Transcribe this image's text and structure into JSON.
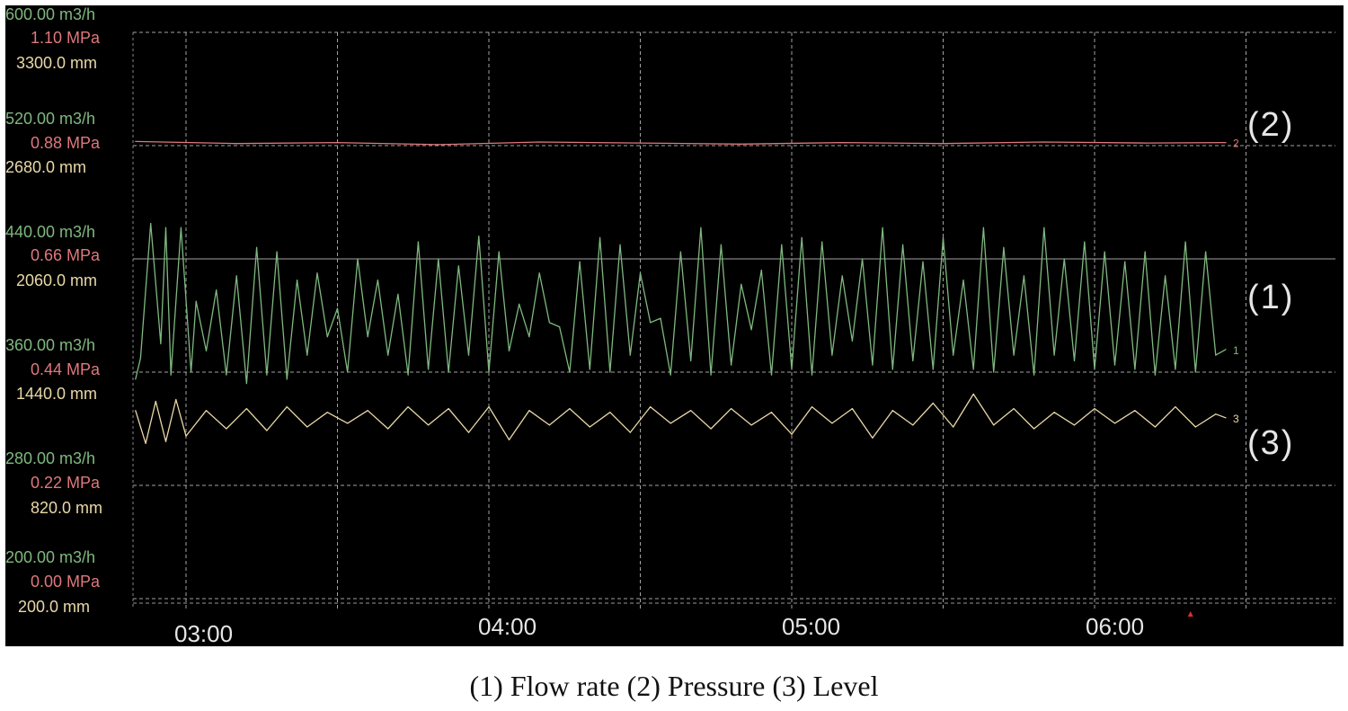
{
  "caption": "(1) Flow rate (2) Pressure (3) Level",
  "colors": {
    "background": "#000000",
    "flow": "#7fb87f",
    "pressure": "#e0787c",
    "level": "#e9d8a6",
    "grid": "#bfbfbf",
    "marker": "#d83030"
  },
  "y_axis_groups": [
    {
      "flow": "600.00 m3/h",
      "pressure": "1.10 MPa",
      "level": "3300.0 mm"
    },
    {
      "flow": "520.00 m3/h",
      "pressure": "0.88 MPa",
      "level": "2680.0 mm"
    },
    {
      "flow": "440.00 m3/h",
      "pressure": "0.66 MPa",
      "level": "2060.0 mm"
    },
    {
      "flow": "360.00 m3/h",
      "pressure": "0.44 MPa",
      "level": "1440.0 mm"
    },
    {
      "flow": "280.00 m3/h",
      "pressure": "0.22 MPa",
      "level": "820.0 mm"
    },
    {
      "flow": "200.00 m3/h",
      "pressure": "0.00 MPa",
      "level": "200.0 mm"
    }
  ],
  "x_ticks": [
    "03:00",
    "04:00",
    "05:00",
    "06:00"
  ],
  "curve_labels": {
    "pressure": "(2)",
    "flow": "(1)",
    "level": "(3)"
  },
  "chart_data": {
    "type": "line",
    "title": "",
    "xlabel": "",
    "x_unit": "hh:mm",
    "xlim": [
      "02:49",
      "06:55"
    ],
    "grid": true,
    "y_axes": [
      {
        "name": "flow",
        "unit": "m3/h",
        "ylim": [
          200,
          600
        ]
      },
      {
        "name": "pressure",
        "unit": "MPa",
        "ylim": [
          0.0,
          1.1
        ]
      },
      {
        "name": "level",
        "unit": "mm",
        "ylim": [
          200,
          3300
        ]
      }
    ],
    "tick_labels_x": [
      "03:00",
      "04:00",
      "05:00",
      "06:00"
    ],
    "series": [
      {
        "key": "flow",
        "axis": "flow",
        "marker_label": "1",
        "x": [
          "02:50",
          "02:51",
          "02:53",
          "02:55",
          "02:56",
          "02:57",
          "02:59",
          "03:01",
          "03:02",
          "03:04",
          "03:06",
          "03:08",
          "03:10",
          "03:12",
          "03:14",
          "03:16",
          "03:18",
          "03:20",
          "03:22",
          "03:24",
          "03:26",
          "03:28",
          "03:30",
          "03:32",
          "03:34",
          "03:36",
          "03:38",
          "03:40",
          "03:42",
          "03:44",
          "03:46",
          "03:48",
          "03:50",
          "03:52",
          "03:54",
          "03:56",
          "03:58",
          "04:00",
          "04:02",
          "04:04",
          "04:06",
          "04:08",
          "04:10",
          "04:12",
          "04:14",
          "04:16",
          "04:18",
          "04:20",
          "04:22",
          "04:24",
          "04:26",
          "04:28",
          "04:30",
          "04:32",
          "04:34",
          "04:36",
          "04:38",
          "04:40",
          "04:42",
          "04:44",
          "04:46",
          "04:48",
          "04:50",
          "04:52",
          "04:54",
          "04:56",
          "04:58",
          "05:00",
          "05:02",
          "05:04",
          "05:06",
          "05:08",
          "05:10",
          "05:12",
          "05:14",
          "05:16",
          "05:18",
          "05:20",
          "05:22",
          "05:24",
          "05:26",
          "05:28",
          "05:30",
          "05:32",
          "05:34",
          "05:36",
          "05:38",
          "05:40",
          "05:42",
          "05:44",
          "05:46",
          "05:48",
          "05:50",
          "05:52",
          "05:54",
          "05:56",
          "05:58",
          "06:00",
          "06:02",
          "06:04",
          "06:06",
          "06:08",
          "06:10",
          "06:12",
          "06:14",
          "06:16",
          "06:18",
          "06:20",
          "06:22",
          "06:24",
          "06:26"
        ],
        "values": [
          355,
          370,
          465,
          380,
          462,
          358,
          462,
          360,
          410,
          375,
          418,
          358,
          428,
          352,
          448,
          358,
          445,
          355,
          425,
          372,
          430,
          385,
          405,
          360,
          440,
          385,
          425,
          372,
          415,
          358,
          452,
          362,
          440,
          360,
          435,
          372,
          456,
          360,
          445,
          375,
          408,
          385,
          430,
          395,
          392,
          360,
          438,
          362,
          455,
          360,
          450,
          372,
          430,
          395,
          398,
          358,
          445,
          368,
          462,
          358,
          450,
          365,
          422,
          390,
          432,
          358,
          450,
          362,
          455,
          358,
          452,
          372,
          428,
          382,
          440,
          365,
          462,
          362,
          450,
          368,
          438,
          362,
          455,
          372,
          425,
          362,
          462,
          360,
          448,
          372,
          428,
          358,
          462,
          372,
          440,
          368,
          452,
          362,
          445,
          365,
          438,
          362,
          445,
          358,
          428,
          362,
          452,
          360,
          445,
          372,
          376
        ]
      },
      {
        "key": "pressure",
        "axis": "pressure",
        "marker_label": "2",
        "x": [
          "02:50",
          "03:10",
          "03:30",
          "03:50",
          "04:10",
          "04:30",
          "04:50",
          "05:10",
          "05:30",
          "05:50",
          "06:10",
          "06:26"
        ],
        "values": [
          0.888,
          0.884,
          0.886,
          0.882,
          0.887,
          0.885,
          0.883,
          0.886,
          0.884,
          0.887,
          0.885,
          0.886
        ]
      },
      {
        "key": "level",
        "axis": "level",
        "marker_label": "3",
        "x": [
          "02:50",
          "02:52",
          "02:54",
          "02:56",
          "02:58",
          "03:00",
          "03:04",
          "03:08",
          "03:12",
          "03:16",
          "03:20",
          "03:24",
          "03:28",
          "03:32",
          "03:36",
          "03:40",
          "03:44",
          "03:48",
          "03:52",
          "03:56",
          "04:00",
          "04:04",
          "04:08",
          "04:12",
          "04:16",
          "04:20",
          "04:24",
          "04:28",
          "04:32",
          "04:36",
          "04:40",
          "04:44",
          "04:48",
          "04:52",
          "04:56",
          "05:00",
          "05:04",
          "05:08",
          "05:12",
          "05:16",
          "05:20",
          "05:24",
          "05:28",
          "05:32",
          "05:36",
          "05:40",
          "05:44",
          "05:48",
          "05:52",
          "05:56",
          "06:00",
          "06:04",
          "06:08",
          "06:12",
          "06:16",
          "06:20",
          "06:24",
          "06:26"
        ],
        "values": [
          1230,
          1050,
          1280,
          1060,
          1290,
          1090,
          1230,
          1130,
          1240,
          1120,
          1250,
          1140,
          1220,
          1160,
          1230,
          1130,
          1250,
          1150,
          1240,
          1110,
          1250,
          1070,
          1230,
          1150,
          1240,
          1140,
          1220,
          1110,
          1250,
          1160,
          1230,
          1130,
          1240,
          1150,
          1220,
          1100,
          1250,
          1160,
          1240,
          1080,
          1230,
          1150,
          1270,
          1140,
          1320,
          1150,
          1240,
          1130,
          1220,
          1150,
          1240,
          1160,
          1230,
          1140,
          1250,
          1140,
          1210,
          1190
        ]
      }
    ],
    "annotations": [
      "(1)",
      "(2)",
      "(3)"
    ]
  }
}
